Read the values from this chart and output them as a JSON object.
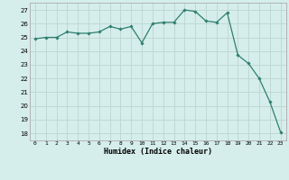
{
  "x": [
    0,
    1,
    2,
    3,
    4,
    5,
    6,
    7,
    8,
    9,
    10,
    11,
    12,
    13,
    14,
    15,
    16,
    17,
    18,
    19,
    20,
    21,
    22,
    23
  ],
  "y": [
    24.9,
    25.0,
    25.0,
    25.4,
    25.3,
    25.3,
    25.4,
    25.8,
    25.6,
    25.8,
    24.6,
    26.0,
    26.1,
    26.1,
    27.0,
    26.9,
    26.2,
    26.1,
    26.8,
    23.7,
    23.1,
    22.0,
    20.3,
    18.1
  ],
  "xlabel": "Humidex (Indice chaleur)",
  "ylim": [
    17.5,
    27.5
  ],
  "yticks": [
    18,
    19,
    20,
    21,
    22,
    23,
    24,
    25,
    26,
    27
  ],
  "xticks": [
    0,
    1,
    2,
    3,
    4,
    5,
    6,
    7,
    8,
    9,
    10,
    11,
    12,
    13,
    14,
    15,
    16,
    17,
    18,
    19,
    20,
    21,
    22,
    23
  ],
  "line_color": "#2e7f6e",
  "marker_color": "#2e7f6e",
  "bg_color": "#d5eeeb",
  "grid_color": "#c0d8d4",
  "spine_color": "#aaaaaa"
}
